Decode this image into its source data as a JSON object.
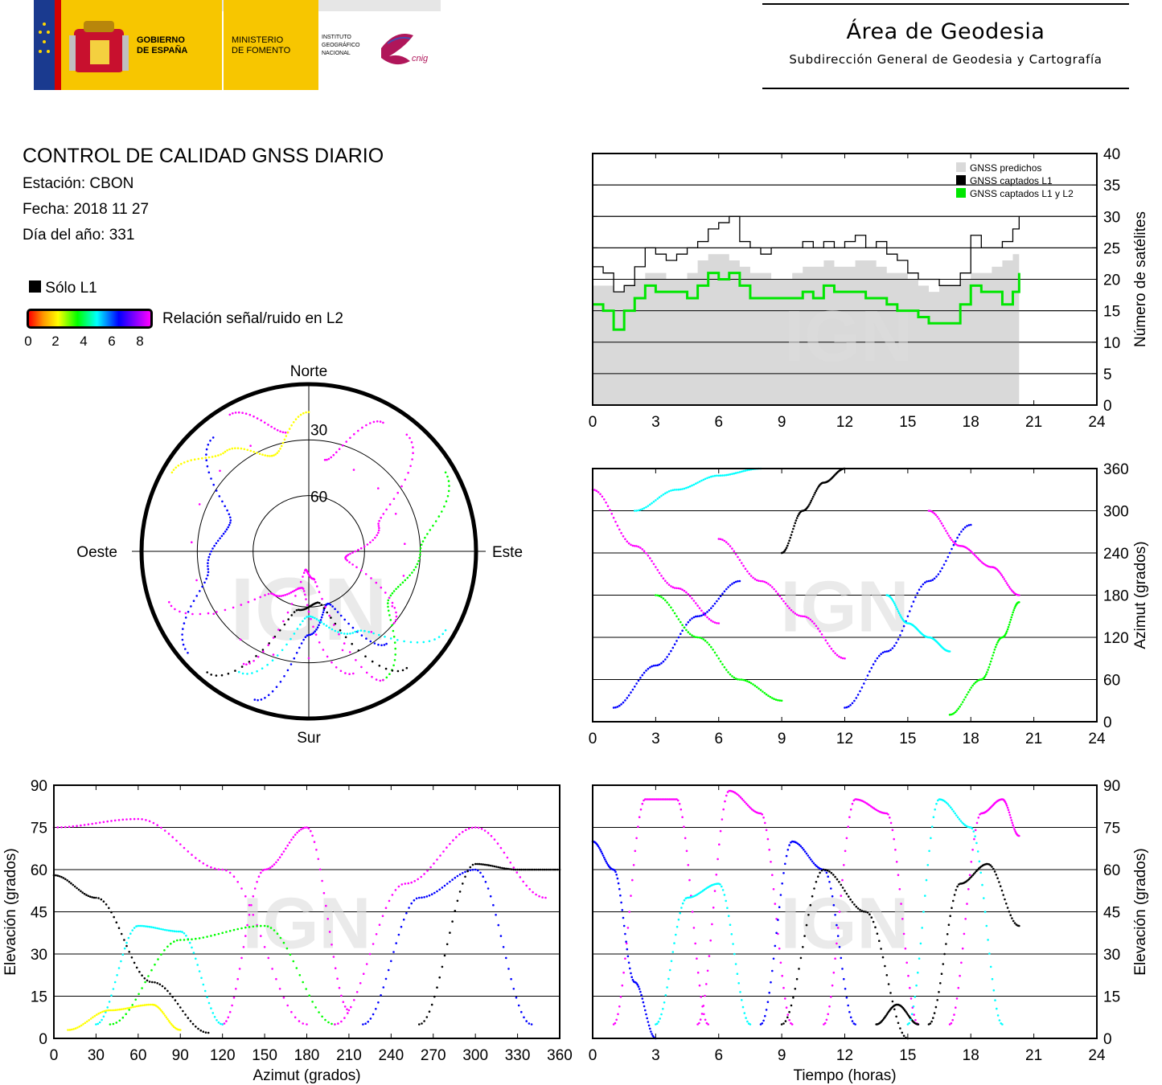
{
  "header": {
    "logos": {
      "gobierno": "GOBIERNO DE ESPAÑA",
      "ministerio": "MINISTERIO DE FOMENTO",
      "instituto": "INSTITUTO GEOGRÁFICO NACIONAL",
      "cnig": "cnig"
    },
    "area_title": "Área de Geodesia",
    "area_subtitle": "Subdirección General de Geodesia y Cartografía"
  },
  "info": {
    "title": "CONTROL DE CALIDAD GNSS DIARIO",
    "station": "Estación: CBON",
    "date": "Fecha: 2018 11 27",
    "doy": "Día del año: 331"
  },
  "color_legend": {
    "l1_only": "Sólo L1",
    "snr_label": "Relación señal/ruido en L2",
    "ticks": [
      "0",
      "2",
      "4",
      "6",
      "8"
    ],
    "colors": [
      "#ff0000",
      "#ff9900",
      "#ffff00",
      "#00ff00",
      "#00ffff",
      "#0000ff",
      "#ff00ff"
    ]
  },
  "watermark": "IGN",
  "chart_data": [
    {
      "type": "line",
      "id": "satellite-count",
      "xlim": [
        0,
        24
      ],
      "ylim": [
        0,
        40
      ],
      "xticks": [
        "0",
        "3",
        "6",
        "9",
        "12",
        "15",
        "18",
        "21",
        "24"
      ],
      "yticks": [
        "0",
        "5",
        "10",
        "15",
        "20",
        "25",
        "30",
        "35",
        "40"
      ],
      "ylabel": "Número de satélites",
      "legend_position": "top-right",
      "grid": true,
      "series": [
        {
          "name": "GNSS predichos",
          "color": "#d9d9d9",
          "x": [
            0,
            0.5,
            1,
            1.5,
            2,
            2.5,
            3,
            3.5,
            4,
            4.5,
            5,
            5.5,
            6,
            6.5,
            7,
            7.5,
            8,
            8.5,
            9,
            9.5,
            10,
            10.5,
            11,
            11.5,
            12,
            12.5,
            13,
            13.5,
            14,
            14.5,
            15,
            15.5,
            16,
            16.5,
            17,
            17.5,
            18,
            18.5,
            19,
            19.5,
            20,
            20.3
          ],
          "y": [
            19,
            19,
            18,
            19,
            20,
            21,
            21,
            20,
            20,
            21,
            23,
            24,
            24,
            23,
            22,
            21,
            21,
            20,
            20,
            21,
            22,
            22,
            23,
            22,
            22,
            23,
            23,
            22,
            21,
            21,
            20,
            19,
            18,
            19,
            19,
            20,
            21,
            21,
            22,
            23,
            24,
            24
          ]
        },
        {
          "name": "GNSS captados L1",
          "color": "#000000",
          "x": [
            0,
            0.5,
            1,
            1.5,
            2,
            2.5,
            3,
            3.5,
            4,
            4.5,
            5,
            5.5,
            6,
            6.5,
            7,
            7.5,
            8,
            8.5,
            9,
            9.5,
            10,
            10.5,
            11,
            11.5,
            12,
            12.5,
            13,
            13.5,
            14,
            14.5,
            15,
            15.5,
            16,
            16.5,
            17,
            17.5,
            18,
            18.5,
            19,
            19.5,
            20,
            20.3
          ],
          "y": [
            22,
            21,
            18,
            19,
            22,
            25,
            24,
            23,
            24,
            25,
            26,
            28,
            29,
            30,
            26,
            25,
            24,
            25,
            25,
            25,
            26,
            25,
            26,
            25,
            26,
            27,
            25,
            26,
            24,
            23,
            21,
            20,
            20,
            19,
            19,
            21,
            27,
            25,
            25,
            26,
            28,
            30
          ]
        },
        {
          "name": "GNSS captados L1 y L2",
          "color": "#00e600",
          "x": [
            0,
            0.5,
            1,
            1.5,
            2,
            2.5,
            3,
            3.5,
            4,
            4.5,
            5,
            5.5,
            6,
            6.5,
            7,
            7.5,
            8,
            8.5,
            9,
            9.5,
            10,
            10.5,
            11,
            11.5,
            12,
            12.5,
            13,
            13.5,
            14,
            14.5,
            15,
            15.5,
            16,
            16.5,
            17,
            17.5,
            18,
            18.5,
            19,
            19.5,
            20,
            20.3
          ],
          "y": [
            16,
            15,
            12,
            15,
            17,
            19,
            18,
            18,
            18,
            17,
            19,
            21,
            20,
            21,
            19,
            17,
            17,
            17,
            17,
            17,
            18,
            17,
            19,
            18,
            18,
            18,
            17,
            17,
            16,
            15,
            15,
            14,
            13,
            13,
            13,
            16,
            19,
            18,
            18,
            16,
            18,
            21
          ]
        }
      ]
    },
    {
      "type": "scatter",
      "id": "sky-plot",
      "labels": {
        "north": "Norte",
        "south": "Sur",
        "east": "Este",
        "west": "Oeste"
      },
      "rings": [
        "30",
        "60"
      ],
      "tracks": [
        {
          "az": [
            330,
            350,
            10,
            30
          ],
          "el": [
            5,
            25,
            40,
            10
          ],
          "color": "#ff00ff"
        },
        {
          "az": [
            200,
            180,
            160,
            140
          ],
          "el": [
            5,
            45,
            60,
            25
          ],
          "color": "#0000ff"
        },
        {
          "az": [
            250,
            220,
            190,
            160
          ],
          "el": [
            10,
            60,
            70,
            20
          ],
          "color": "#ff00ff"
        },
        {
          "az": [
            120,
            150,
            180,
            210
          ],
          "el": [
            5,
            40,
            55,
            15
          ],
          "color": "#00ffff"
        },
        {
          "az": [
            60,
            90,
            120,
            150
          ],
          "el": [
            5,
            30,
            40,
            10
          ],
          "color": "#00ff00"
        },
        {
          "az": [
            300,
            320,
            340,
            360
          ],
          "el": [
            5,
            20,
            35,
            15
          ],
          "color": "#ffff00"
        },
        {
          "az": [
            220,
            190,
            170,
            140
          ],
          "el": [
            5,
            58,
            62,
            8
          ],
          "color": "#000000"
        },
        {
          "az": [
            40,
            70,
            100,
            130
          ],
          "el": [
            8,
            50,
            70,
            30
          ],
          "color": "#ff00ff"
        },
        {
          "az": [
            230,
            260,
            290,
            320
          ],
          "el": [
            5,
            35,
            45,
            10
          ],
          "color": "#0000ff"
        },
        {
          "az": [
            150,
            170,
            190,
            210
          ],
          "el": [
            10,
            75,
            80,
            20
          ],
          "color": "#ff00ff"
        }
      ]
    },
    {
      "type": "scatter",
      "id": "azimuth-vs-time",
      "xlim": [
        0,
        24
      ],
      "ylim": [
        0,
        360
      ],
      "xticks": [
        "0",
        "3",
        "6",
        "9",
        "12",
        "15",
        "18",
        "21",
        "24"
      ],
      "yticks": [
        "0",
        "60",
        "120",
        "180",
        "240",
        "300",
        "360"
      ],
      "ylabel": "Azimut (grados)",
      "grid": true,
      "tracks": [
        {
          "x": [
            0,
            2,
            4,
            6
          ],
          "y": [
            330,
            250,
            190,
            140
          ],
          "color": "#ff00ff"
        },
        {
          "x": [
            1,
            3,
            5,
            7
          ],
          "y": [
            20,
            80,
            150,
            200
          ],
          "color": "#0000ff"
        },
        {
          "x": [
            2,
            4,
            6,
            8
          ],
          "y": [
            300,
            330,
            350,
            360
          ],
          "color": "#00ffff"
        },
        {
          "x": [
            3,
            5,
            7,
            9
          ],
          "y": [
            180,
            120,
            60,
            30
          ],
          "color": "#00ff00"
        },
        {
          "x": [
            6,
            8,
            10,
            12
          ],
          "y": [
            260,
            200,
            150,
            90
          ],
          "color": "#ff00ff"
        },
        {
          "x": [
            9,
            10,
            11,
            12
          ],
          "y": [
            240,
            300,
            340,
            360
          ],
          "color": "#000000"
        },
        {
          "x": [
            12,
            14,
            16,
            18
          ],
          "y": [
            20,
            100,
            200,
            280
          ],
          "color": "#0000ff"
        },
        {
          "x": [
            14,
            15,
            16,
            17
          ],
          "y": [
            180,
            140,
            120,
            100
          ],
          "color": "#00ffff"
        },
        {
          "x": [
            16,
            17.5,
            19,
            20.3
          ],
          "y": [
            300,
            250,
            220,
            180
          ],
          "color": "#ff00ff"
        },
        {
          "x": [
            17,
            18.5,
            19.5,
            20.3
          ],
          "y": [
            10,
            60,
            120,
            170
          ],
          "color": "#00ff00"
        }
      ]
    },
    {
      "type": "scatter",
      "id": "elevation-vs-azimuth",
      "xlim": [
        0,
        360
      ],
      "ylim": [
        0,
        90
      ],
      "xticks": [
        "0",
        "30",
        "60",
        "90",
        "120",
        "150",
        "180",
        "210",
        "240",
        "270",
        "300",
        "330",
        "360"
      ],
      "yticks": [
        "0",
        "15",
        "30",
        "45",
        "60",
        "75",
        "90"
      ],
      "xlabel": "Azimut (grados)",
      "ylabel": "Elevación (grados)",
      "grid": true,
      "tracks": [
        {
          "x": [
            0,
            60,
            120,
            180
          ],
          "y": [
            75,
            78,
            60,
            5
          ],
          "color": "#ff00ff"
        },
        {
          "x": [
            120,
            150,
            180,
            210
          ],
          "y": [
            5,
            60,
            75,
            10
          ],
          "color": "#ff00ff"
        },
        {
          "x": [
            30,
            60,
            90,
            120
          ],
          "y": [
            5,
            40,
            38,
            5
          ],
          "color": "#00ffff"
        },
        {
          "x": [
            0,
            30,
            70,
            110
          ],
          "y": [
            58,
            50,
            20,
            2
          ],
          "color": "#000000"
        },
        {
          "x": [
            220,
            260,
            300,
            340
          ],
          "y": [
            5,
            50,
            60,
            5
          ],
          "color": "#0000ff"
        },
        {
          "x": [
            260,
            300,
            330,
            360
          ],
          "y": [
            5,
            62,
            60,
            60
          ],
          "color": "#000000"
        },
        {
          "x": [
            40,
            90,
            150,
            200
          ],
          "y": [
            5,
            35,
            40,
            5
          ],
          "color": "#00ff00"
        },
        {
          "x": [
            200,
            250,
            300,
            350
          ],
          "y": [
            5,
            55,
            75,
            50
          ],
          "color": "#ff00ff"
        },
        {
          "x": [
            10,
            40,
            70,
            90
          ],
          "y": [
            3,
            10,
            12,
            3
          ],
          "color": "#ffff00"
        }
      ]
    },
    {
      "type": "scatter",
      "id": "elevation-vs-time",
      "xlim": [
        0,
        24
      ],
      "ylim": [
        0,
        90
      ],
      "xticks": [
        "0",
        "3",
        "6",
        "9",
        "12",
        "15",
        "18",
        "21",
        "24"
      ],
      "yticks": [
        "0",
        "15",
        "30",
        "45",
        "60",
        "75",
        "90"
      ],
      "xlabel": "Tiempo (horas)",
      "ylabel": "Elevación (grados)",
      "grid": true,
      "tracks": [
        {
          "x": [
            0,
            1,
            2,
            3
          ],
          "y": [
            70,
            60,
            20,
            0
          ],
          "color": "#0000ff"
        },
        {
          "x": [
            1,
            2.5,
            4,
            5.5
          ],
          "y": [
            5,
            85,
            85,
            5
          ],
          "color": "#ff00ff"
        },
        {
          "x": [
            3,
            4.5,
            6,
            7.5
          ],
          "y": [
            5,
            50,
            55,
            5
          ],
          "color": "#00ffff"
        },
        {
          "x": [
            5,
            6.5,
            8,
            9.5
          ],
          "y": [
            5,
            88,
            80,
            5
          ],
          "color": "#ff00ff"
        },
        {
          "x": [
            8,
            9.5,
            11,
            12.5
          ],
          "y": [
            5,
            70,
            60,
            5
          ],
          "color": "#0000ff"
        },
        {
          "x": [
            9,
            11,
            13,
            15
          ],
          "y": [
            5,
            60,
            45,
            0
          ],
          "color": "#000000"
        },
        {
          "x": [
            11,
            12.5,
            14,
            15.5
          ],
          "y": [
            5,
            85,
            80,
            5
          ],
          "color": "#ff00ff"
        },
        {
          "x": [
            13.5,
            14.5,
            15.5
          ],
          "y": [
            5,
            12,
            5
          ],
          "color": "#000000"
        },
        {
          "x": [
            15,
            16.5,
            18,
            19.5
          ],
          "y": [
            5,
            85,
            75,
            5
          ],
          "color": "#00ffff"
        },
        {
          "x": [
            16,
            17.5,
            18.8,
            20.3
          ],
          "y": [
            5,
            55,
            62,
            40
          ],
          "color": "#000000"
        },
        {
          "x": [
            17,
            18.5,
            19.5,
            20.3
          ],
          "y": [
            5,
            80,
            85,
            72
          ],
          "color": "#ff00ff"
        }
      ]
    }
  ]
}
